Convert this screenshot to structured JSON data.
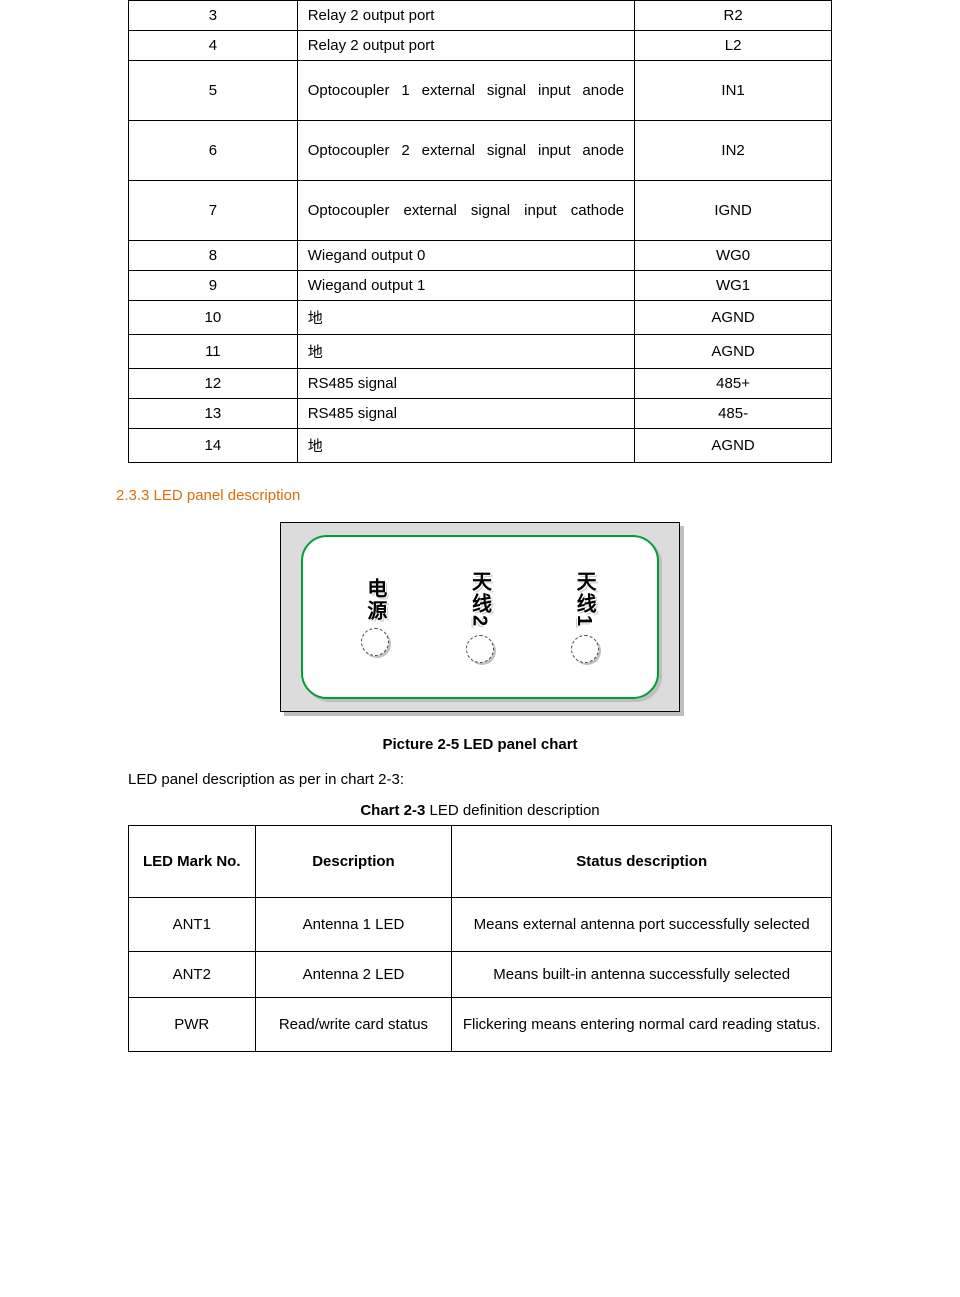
{
  "table1": {
    "rows": [
      {
        "no": "3",
        "desc": "Relay 2 output port",
        "mark": "R2",
        "tall": false,
        "justify": false
      },
      {
        "no": "4",
        "desc": "Relay 2 output port",
        "mark": "L2",
        "tall": false,
        "justify": false
      },
      {
        "no": "5",
        "desc": "Optocoupler 1 external signal input anode",
        "mark": "IN1",
        "tall": true,
        "justify": true
      },
      {
        "no": "6",
        "desc": "Optocoupler 2 external signal input anode",
        "mark": "IN2",
        "tall": true,
        "justify": true
      },
      {
        "no": "7",
        "desc": "Optocoupler external signal input cathode",
        "mark": "IGND",
        "tall": true,
        "justify": true
      },
      {
        "no": "8",
        "desc": "Wiegand output   0",
        "mark": "WG0",
        "tall": false,
        "justify": false
      },
      {
        "no": "9",
        "desc": "Wiegand output   1",
        "mark": "WG1",
        "tall": false,
        "justify": false
      },
      {
        "no": "10",
        "desc": "地",
        "mark": "AGND",
        "tall": false,
        "justify": false
      },
      {
        "no": "11",
        "desc": "地",
        "mark": "AGND",
        "tall": false,
        "justify": false
      },
      {
        "no": "12",
        "desc": "RS485 signal",
        "mark": "485+",
        "tall": false,
        "justify": false
      },
      {
        "no": "13",
        "desc": "RS485 signal",
        "mark": "485-",
        "tall": false,
        "justify": false
      },
      {
        "no": "14",
        "desc": "地",
        "mark": "AGND",
        "tall": false,
        "justify": false
      }
    ]
  },
  "headings": {
    "section": "2.3.3   LED panel description",
    "caption": "Picture 2-5   LED panel chart",
    "body": "LED panel description as per in chart 2-3:",
    "chart_bold": "Chart 2-3",
    "chart_rest": "     LED definition description"
  },
  "panel": {
    "labels": [
      "电源",
      "天线2",
      "天线1"
    ]
  },
  "table2": {
    "headers": {
      "c1": "LED Mark No.",
      "c2": "Description",
      "c3": "Status description"
    },
    "rows": [
      {
        "no": "ANT1",
        "desc": "Antenna 1 LED",
        "status": "Means external antenna port successfully selected",
        "short": false
      },
      {
        "no": "ANT2",
        "desc": "Antenna 2 LED",
        "status": "Means built-in antenna successfully selected",
        "short": true
      },
      {
        "no": "PWR",
        "desc": "Read/write card status",
        "status": "Flickering means entering normal card reading status.",
        "short": false
      }
    ]
  },
  "colors": {
    "heading": "#e36c09",
    "panel_border": "#009e3a"
  }
}
